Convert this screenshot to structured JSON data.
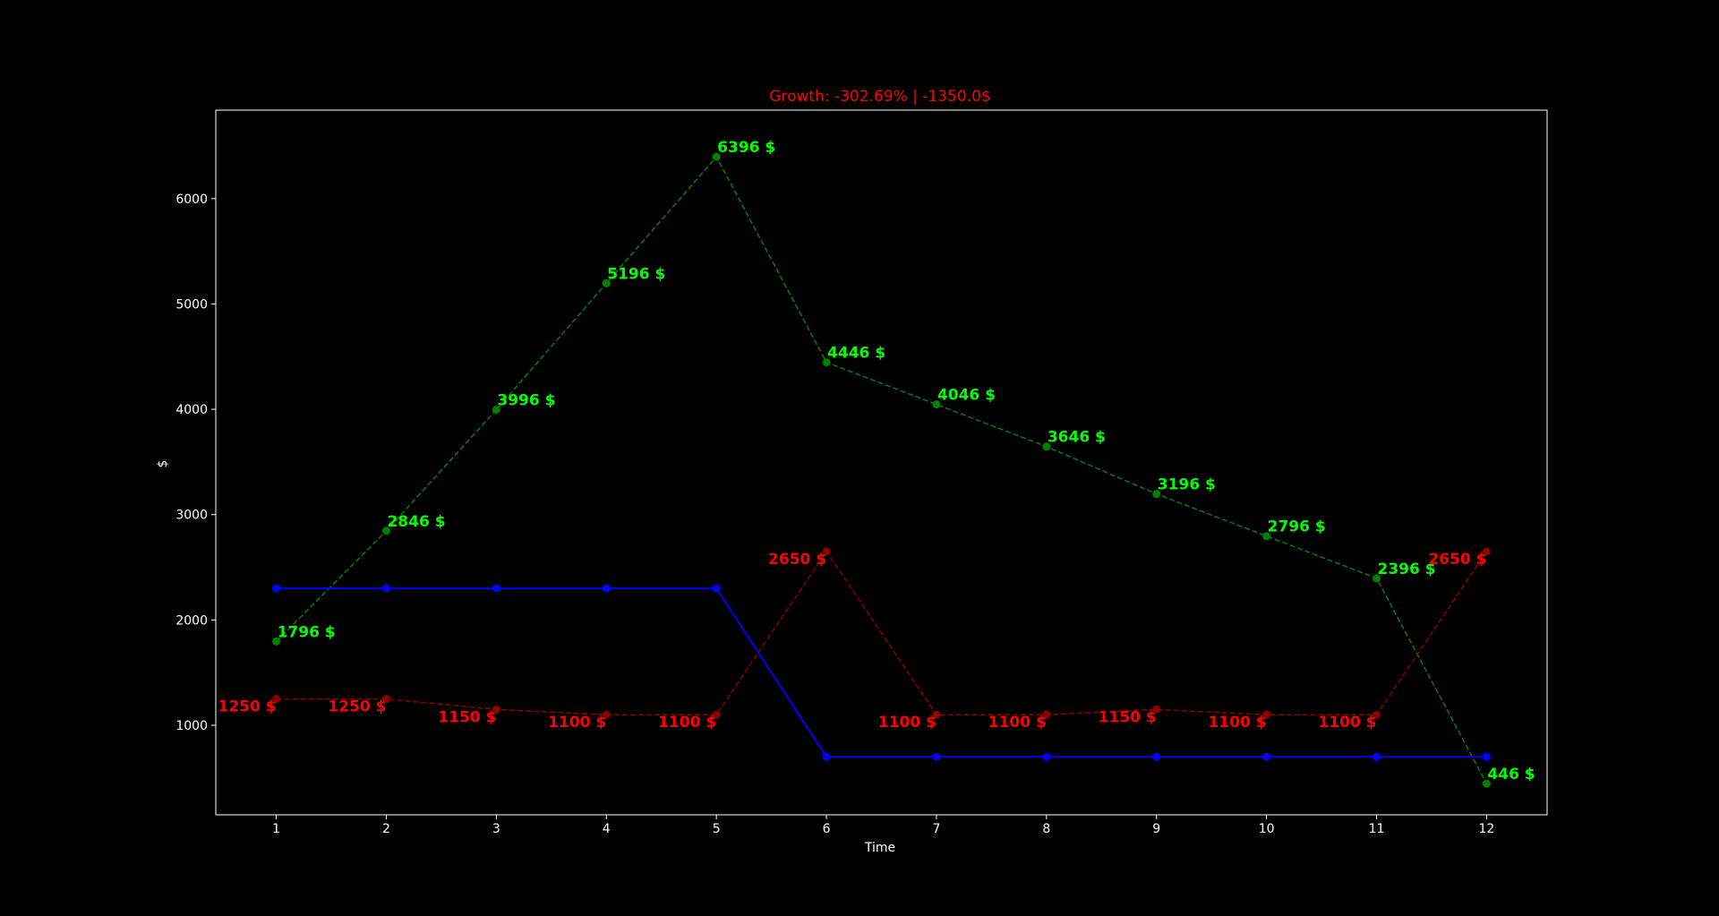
{
  "chart_data": {
    "type": "line",
    "title": "Growth: -302.69% | -1350.0$",
    "title_color": "#ff0000",
    "xlabel": "Time",
    "ylabel": "$",
    "background": "#000000",
    "axes_color": "#ffffff",
    "grid": false,
    "xlim": [
      0.45,
      12.55
    ],
    "ylim": [
      150,
      6840
    ],
    "xticks": [
      1,
      2,
      3,
      4,
      5,
      6,
      7,
      8,
      9,
      10,
      11,
      12
    ],
    "yticks": [
      1000,
      2000,
      3000,
      4000,
      5000,
      6000
    ],
    "x": [
      1,
      2,
      3,
      4,
      5,
      6,
      7,
      8,
      9,
      10,
      11,
      12
    ],
    "series": [
      {
        "key": "green",
        "values": [
          1796,
          2846,
          3996,
          5196,
          6396,
          4446,
          4046,
          3646,
          3196,
          2796,
          2396,
          446
        ],
        "color": "#008000",
        "label_color": "#00ff00",
        "dashed": true,
        "label_suffix": " $",
        "label_side": "right"
      },
      {
        "key": "blue",
        "values": [
          2300,
          2300,
          2300,
          2300,
          2300,
          700,
          700,
          700,
          700,
          700,
          700,
          700
        ],
        "color": "#0000ff",
        "dashed": false
      },
      {
        "key": "red",
        "values": [
          1250,
          1250,
          1150,
          1100,
          1100,
          2650,
          1100,
          1100,
          1150,
          1100,
          1100,
          2650
        ],
        "color": "#8b0000",
        "label_color": "#ff0000",
        "dashed": true,
        "label_suffix": " $",
        "label_side": "left"
      }
    ]
  }
}
